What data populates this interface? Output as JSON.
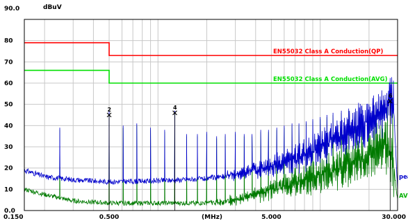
{
  "chart_data": {
    "type": "line",
    "title": "",
    "ylabel": "dBuV",
    "xlabel": "(MHz)",
    "x_scale": "log",
    "xlim": [
      0.15,
      30
    ],
    "ylim": [
      0,
      90
    ],
    "y_ticks": [
      "0.0",
      "10",
      "20",
      "30",
      "40",
      "50",
      "60",
      "70",
      "80",
      "90.0"
    ],
    "x_tick_labels": [
      {
        "value": 0.15,
        "label": "0.150"
      },
      {
        "value": 0.5,
        "label": "0.500"
      },
      {
        "value": 5,
        "label": "5.000"
      },
      {
        "value": 30,
        "label": "30.000"
      }
    ],
    "grid": true,
    "limits": [
      {
        "name": "EN55032 Class A Conduction(QP)",
        "color": "#ff0000",
        "segments": [
          {
            "x": [
              0.15,
              0.5
            ],
            "y": 79
          },
          {
            "x": [
              0.5,
              30
            ],
            "y": 73
          }
        ]
      },
      {
        "name": "EN55032 Class A Conduction(AVG)",
        "color": "#00e000",
        "segments": [
          {
            "x": [
              0.15,
              0.5
            ],
            "y": 66
          },
          {
            "x": [
              0.5,
              30
            ],
            "y": 60
          }
        ]
      }
    ],
    "series": [
      {
        "name": "pea",
        "color": "#0000cc",
        "floor": [
          [
            0.15,
            19
          ],
          [
            0.2,
            16
          ],
          [
            0.3,
            14.5
          ],
          [
            0.5,
            13.5
          ],
          [
            1.0,
            14
          ],
          [
            2.0,
            15
          ],
          [
            3.0,
            17
          ],
          [
            5.0,
            21
          ],
          [
            8.0,
            26
          ],
          [
            12.0,
            33
          ],
          [
            18.0,
            40
          ],
          [
            25.0,
            48
          ],
          [
            27.0,
            52
          ],
          [
            28.5,
            46
          ],
          [
            30.0,
            10
          ]
        ],
        "peaks": [
          [
            0.248,
            39
          ],
          [
            0.5,
            47
          ],
          [
            0.61,
            40
          ],
          [
            0.74,
            41
          ],
          [
            0.9,
            39
          ],
          [
            1.1,
            38
          ],
          [
            1.27,
            47
          ],
          [
            1.5,
            36
          ],
          [
            1.75,
            36
          ],
          [
            2.0,
            37
          ],
          [
            2.3,
            35
          ],
          [
            2.6,
            36
          ],
          [
            3.0,
            37
          ],
          [
            3.4,
            36
          ],
          [
            3.8,
            36
          ],
          [
            4.3,
            38
          ],
          [
            4.8,
            38
          ],
          [
            5.4,
            39
          ],
          [
            6.0,
            40
          ],
          [
            6.7,
            41
          ],
          [
            7.4,
            41
          ],
          [
            8.2,
            42
          ],
          [
            9.0,
            43
          ],
          [
            10.0,
            44
          ],
          [
            11.0,
            45
          ],
          [
            12.0,
            46
          ],
          [
            13.5,
            47
          ],
          [
            15.0,
            48
          ],
          [
            16.5,
            48
          ],
          [
            18.0,
            49
          ],
          [
            20.0,
            50
          ],
          [
            22.0,
            51
          ],
          [
            24.0,
            52
          ],
          [
            26.0,
            52
          ],
          [
            28.0,
            50
          ]
        ]
      },
      {
        "name": "AVG",
        "color": "#007a00",
        "floor": [
          [
            0.15,
            10
          ],
          [
            0.2,
            7.5
          ],
          [
            0.3,
            4.5
          ],
          [
            0.5,
            3.5
          ],
          [
            1.0,
            3.5
          ],
          [
            2.0,
            3.5
          ],
          [
            3.0,
            5
          ],
          [
            5.0,
            10
          ],
          [
            8.0,
            14
          ],
          [
            12.0,
            19
          ],
          [
            18.0,
            24
          ],
          [
            25.0,
            30
          ],
          [
            28.0,
            25
          ],
          [
            30.0,
            5
          ]
        ],
        "peaks": [
          [
            0.248,
            38
          ],
          [
            0.5,
            45
          ],
          [
            0.61,
            39
          ],
          [
            0.74,
            40
          ],
          [
            0.9,
            38
          ],
          [
            1.1,
            37
          ],
          [
            1.27,
            46
          ],
          [
            1.5,
            35
          ],
          [
            1.75,
            35
          ],
          [
            2.0,
            36
          ],
          [
            2.3,
            34
          ],
          [
            2.6,
            35
          ],
          [
            3.0,
            36
          ],
          [
            3.4,
            35
          ],
          [
            3.8,
            35
          ],
          [
            4.3,
            37
          ],
          [
            4.8,
            37
          ],
          [
            5.4,
            38
          ],
          [
            6.0,
            39
          ],
          [
            6.7,
            40
          ],
          [
            7.4,
            40
          ],
          [
            8.2,
            41
          ],
          [
            9.0,
            42
          ],
          [
            10.0,
            43
          ],
          [
            11.0,
            44
          ],
          [
            12.0,
            45
          ],
          [
            13.5,
            46
          ],
          [
            15.0,
            47
          ],
          [
            16.5,
            47
          ],
          [
            18.0,
            48
          ],
          [
            20.0,
            49
          ],
          [
            22.0,
            50
          ],
          [
            24.0,
            51
          ],
          [
            26.0,
            51
          ],
          [
            28.0,
            49
          ]
        ]
      }
    ],
    "markers": [
      {
        "label": "2",
        "symbol": "x",
        "x": 0.5,
        "y": 45
      },
      {
        "label": "4",
        "symbol": "x",
        "x": 1.27,
        "y": 46
      },
      {
        "label": "6",
        "symbol": "x",
        "x": 27.0,
        "y": 51.5
      }
    ]
  }
}
